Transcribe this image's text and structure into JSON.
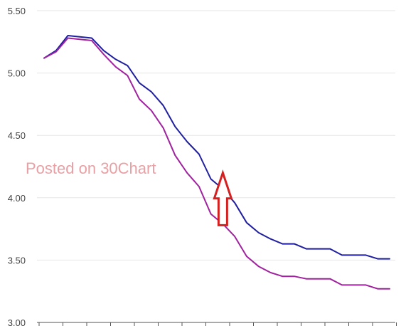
{
  "watermark": {
    "text": "Posted on 30Chart"
  },
  "colors": {
    "series_blue": "#1f1fa0",
    "series_magenta": "#a0229e",
    "arrow": "#d42020",
    "grid": "#e6e6e6",
    "axis": "#555555"
  },
  "chart_data": {
    "type": "line",
    "title": "",
    "xlabel": "",
    "ylabel": "",
    "ylim": [
      3.0,
      5.5
    ],
    "y_ticks": [
      "3.00",
      "3.50",
      "4.00",
      "4.50",
      "5.00",
      "5.50"
    ],
    "x": [
      1,
      2,
      3,
      4,
      5,
      6,
      7,
      8,
      9,
      10,
      11,
      12,
      13,
      14,
      15,
      16,
      17,
      18,
      19,
      20,
      21,
      22,
      23,
      24,
      25,
      26,
      27,
      28,
      29,
      30
    ],
    "grid": "horizontal",
    "legend": "none",
    "series": [
      {
        "color": "#1f1fa0",
        "values": [
          5.12,
          5.18,
          5.3,
          5.29,
          5.28,
          5.18,
          5.11,
          5.06,
          4.92,
          4.85,
          4.74,
          4.57,
          4.45,
          4.35,
          4.15,
          4.07,
          3.96,
          3.8,
          3.72,
          3.67,
          3.63,
          3.63,
          3.59,
          3.59,
          3.59,
          3.54,
          3.54,
          3.54,
          3.51,
          3.51
        ]
      },
      {
        "color": "#a0229e",
        "values": [
          5.12,
          5.17,
          5.28,
          5.27,
          5.26,
          5.15,
          5.05,
          4.98,
          4.79,
          4.7,
          4.56,
          4.34,
          4.2,
          4.09,
          3.87,
          3.79,
          3.69,
          3.53,
          3.45,
          3.4,
          3.37,
          3.37,
          3.35,
          3.35,
          3.35,
          3.3,
          3.3,
          3.3,
          3.27,
          3.27
        ]
      }
    ],
    "annotations": [
      {
        "type": "arrow",
        "direction": "up",
        "color": "#d42020",
        "x": 16,
        "y_from": 3.78,
        "y_to": 4.2
      }
    ]
  }
}
